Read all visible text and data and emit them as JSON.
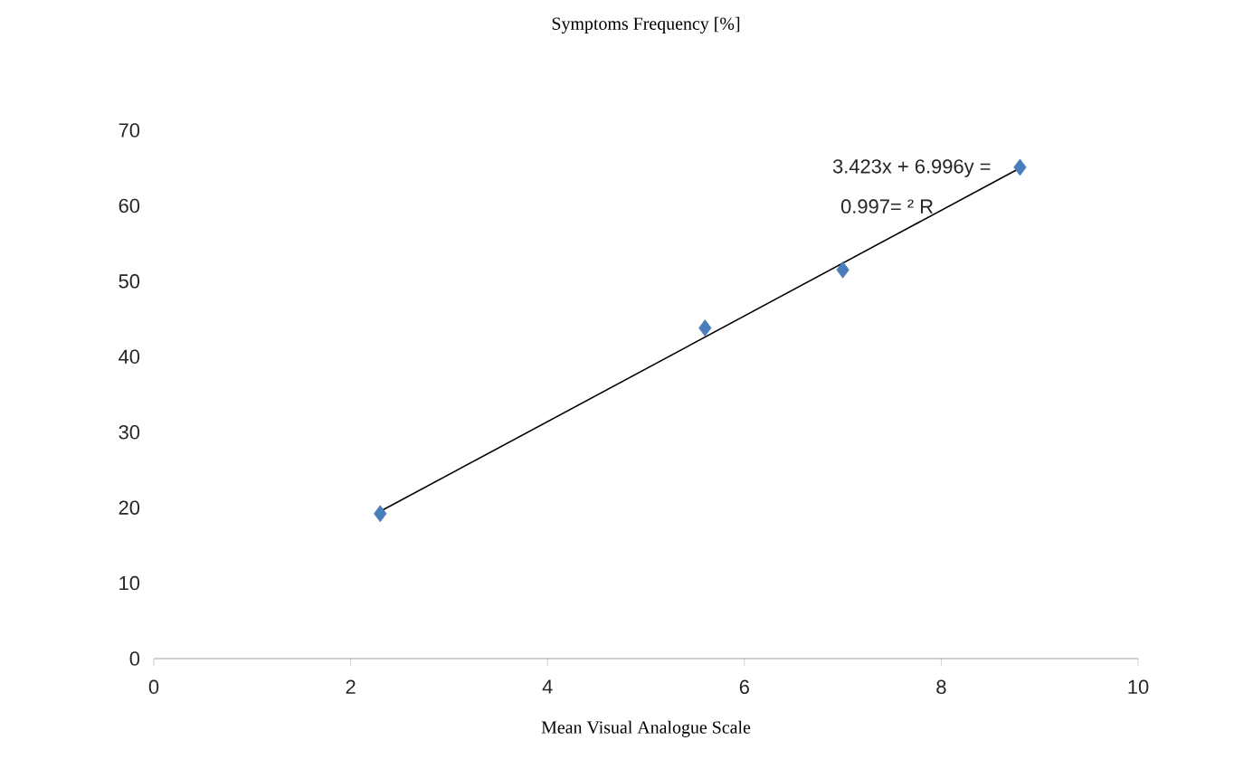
{
  "chart_data": {
    "type": "scatter",
    "title": "Symptoms Frequency [%]",
    "xlabel": "Mean Visual Analogue Scale",
    "x": [
      2.3,
      5.6,
      7.0,
      8.8
    ],
    "series": [
      {
        "color": "#4a7ebb",
        "values": [
          19.2,
          43.8,
          51.5,
          65.1
        ],
        "marker": "diamond"
      },
      {
        "type": "line",
        "color": "#000000",
        "x": [
          2.3,
          8.8
        ],
        "values": [
          19.5,
          65.0
        ],
        "marker": "none"
      }
    ],
    "annotations": [
      "3.423x + 6.996y =",
      "0.997= ² R"
    ],
    "xlim": [
      0,
      10
    ],
    "ylim": [
      0,
      70
    ],
    "xticks": [
      0,
      2,
      4,
      6,
      8,
      10
    ],
    "yticks": [
      0,
      10,
      20,
      30,
      40,
      50,
      60,
      70
    ]
  }
}
